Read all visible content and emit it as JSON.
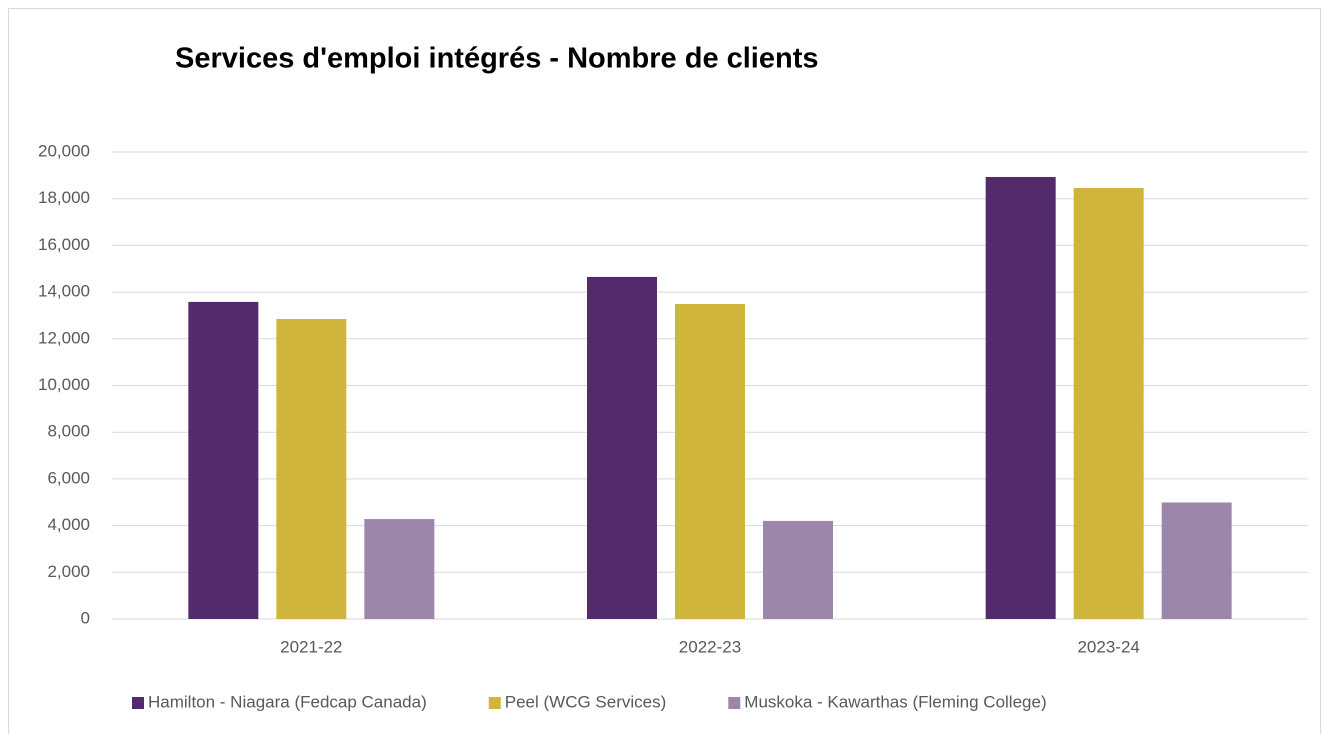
{
  "chart_data": {
    "type": "bar",
    "title": "Services d'emploi intégrés - Nombre de clients",
    "categories": [
      "2021-22",
      "2022-23",
      "2023-24"
    ],
    "series": [
      {
        "name": "Hamilton - Niagara (Fedcap Canada)",
        "color": "#532a6b",
        "values": [
          13580,
          14650,
          18930
        ]
      },
      {
        "name": "Peel (WCG Services)",
        "color": "#cfb53b",
        "values": [
          12850,
          13490,
          18460
        ]
      },
      {
        "name": "Muskoka - Kawarthas (Fleming College)",
        "color": "#9c87ab",
        "values": [
          4280,
          4200,
          4990
        ]
      }
    ],
    "ylim": [
      0,
      20000
    ],
    "yticks": [
      0,
      {
        "value": 2000,
        "label": "2,000"
      },
      {
        "value": 4000,
        "label": "4,000"
      },
      {
        "value": 6000,
        "label": "6,000"
      },
      {
        "value": 8000,
        "label": "8,000"
      },
      {
        "value": 10000,
        "label": "10,000"
      },
      {
        "value": 12000,
        "label": "12,000"
      },
      {
        "value": 14000,
        "label": "14,000"
      },
      {
        "value": 16000,
        "label": "16,000"
      },
      {
        "value": 18000,
        "label": "18,000"
      },
      {
        "value": 20000,
        "label": "20,000"
      }
    ],
    "grid": true,
    "legend": "bottom"
  }
}
